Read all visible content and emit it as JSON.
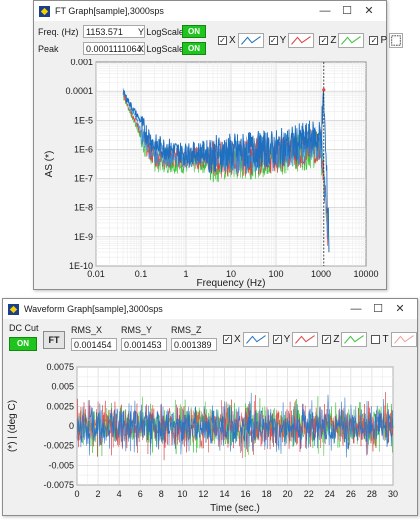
{
  "ft_window": {
    "title": "FT Graph[sample],3000sps",
    "freq_label": "Freq. (Hz)",
    "freq_value": "1153.571",
    "peak_label": "Peak",
    "peak_value": "0.0001111064",
    "y_logscale_label": "Y LogScale",
    "y_logscale_state": "ON",
    "x_logscale_label": "X LogScale",
    "x_logscale_state": "ON",
    "legend": [
      {
        "label": "X",
        "color": "#1f6fbf",
        "checked": true
      },
      {
        "label": "Y",
        "color": "#3a8fd6",
        "checked": true
      },
      {
        "label": "Z",
        "color": "#e04040",
        "checked": true
      },
      {
        "label": "P",
        "color": "#3cc43c",
        "checked": true
      }
    ],
    "xlabel": "Frequency (Hz)",
    "ylabel": "AS (*)",
    "x_ticks": [
      "0.01",
      "0.1",
      "1",
      "10",
      "100",
      "1000",
      "10000"
    ],
    "y_ticks": [
      "0.001",
      "0.0001",
      "1E-5",
      "1E-6",
      "1E-7",
      "1E-8",
      "1E-9",
      "1E-10"
    ]
  },
  "wave_window": {
    "title": "Waveform Graph[sample],3000sps",
    "dc_cut_label": "DC Cut",
    "dc_cut_state": "ON",
    "ft_button": "FT",
    "rms_x_label": "RMS_X",
    "rms_x_value": "0.001454",
    "rms_y_label": "RMS_Y",
    "rms_y_value": "0.001453",
    "rms_z_label": "RMS_Z",
    "rms_z_value": "0.001389",
    "legend": [
      {
        "label": "X",
        "color": "#2a74c7",
        "checked": true
      },
      {
        "label": "Y",
        "color": "#e04848",
        "checked": true
      },
      {
        "label": "Z",
        "color": "#3cc43c",
        "checked": true
      },
      {
        "label": "T",
        "color": "#f0a0a0",
        "checked": false
      }
    ],
    "xlabel": "Time (sec.)",
    "ylabel": "(*)  |  (deg C)",
    "x_ticks": [
      "0",
      "2",
      "4",
      "6",
      "8",
      "10",
      "12",
      "14",
      "16",
      "18",
      "20",
      "22",
      "24",
      "26",
      "28",
      "30"
    ],
    "y_ticks": [
      "0.0075",
      "0.005",
      "0.0025",
      "0",
      "-0.0025",
      "-0.005",
      "-0.0075"
    ]
  },
  "chart_data": [
    {
      "type": "line",
      "xlabel": "Frequency (Hz)",
      "ylabel": "AS (*)",
      "x_scale": "log",
      "y_scale": "log",
      "xlim": [
        0.01,
        10000
      ],
      "ylim": [
        1e-10,
        0.001
      ],
      "series": [
        {
          "name": "X",
          "x": [
            0.04,
            0.1,
            0.2,
            1,
            10,
            100,
            1000,
            1153.571,
            1500
          ],
          "y": [
            0.0001,
            1e-05,
            2e-06,
            1e-06,
            1.5e-06,
            2e-06,
            5e-06,
            0.0001111064,
            1e-09
          ]
        },
        {
          "name": "Y",
          "x": [
            0.04,
            0.1,
            0.2,
            1,
            10,
            100,
            1000,
            1500
          ],
          "y": [
            0.00012,
            5e-06,
            1e-06,
            8e-07,
            1e-06,
            1.5e-06,
            3e-06,
            1e-09
          ]
        },
        {
          "name": "Z",
          "x": [
            0.04,
            0.1,
            0.2,
            1,
            10,
            100,
            1000,
            1500
          ],
          "y": [
            9e-05,
            4e-06,
            8e-07,
            7e-07,
            9e-07,
            1.2e-06,
            2.5e-06,
            1e-09
          ]
        },
        {
          "name": "P",
          "x": [
            0.04,
            0.1,
            0.2,
            1,
            10,
            100,
            1000,
            1500
          ],
          "y": [
            8e-05,
            3e-06,
            6e-07,
            5e-07,
            6e-07,
            1e-06,
            2e-06,
            1e-09
          ]
        }
      ],
      "marker_x": 1153.571,
      "grid": true
    },
    {
      "type": "line",
      "xlabel": "Time (sec.)",
      "ylabel": "(*)  |  (deg C)",
      "xlim": [
        0,
        30
      ],
      "ylim": [
        -0.0075,
        0.0075
      ],
      "series": [
        {
          "name": "X",
          "rms": 0.001454
        },
        {
          "name": "Y",
          "rms": 0.001453
        },
        {
          "name": "Z",
          "rms": 0.001389
        }
      ],
      "grid": true
    }
  ]
}
